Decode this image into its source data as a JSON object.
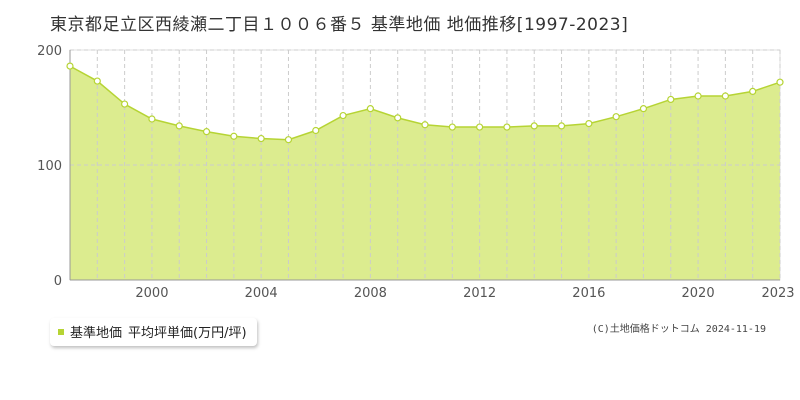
{
  "title": "東京都足立区西綾瀬二丁目１００６番５ 基準地価 地価推移[1997-2023]",
  "legend": {
    "series_label": "基準地価",
    "unit_label": "平均坪単価(万円/坪)"
  },
  "copyright": "(C)土地価格ドットコム 2024-11-19",
  "colors": {
    "fill": "#dcec8f",
    "line": "#b6d434",
    "marker_fill": "#ffffff",
    "grid": "#cccccc",
    "legend_swatch": "#b6d434"
  },
  "chart_data": {
    "type": "area",
    "title": "東京都足立区西綾瀬二丁目１００６番５ 基準地価 地価推移[1997-2023]",
    "xlabel": "",
    "ylabel": "",
    "x": [
      1997,
      1998,
      1999,
      2000,
      2001,
      2002,
      2003,
      2004,
      2005,
      2006,
      2007,
      2008,
      2009,
      2010,
      2011,
      2012,
      2013,
      2014,
      2015,
      2016,
      2017,
      2018,
      2019,
      2020,
      2021,
      2022,
      2023
    ],
    "series": [
      {
        "name": "基準地価",
        "values": [
          186,
          173,
          153,
          140,
          134,
          129,
          125,
          123,
          122,
          130,
          143,
          149,
          141,
          135,
          133,
          133,
          133,
          134,
          134,
          136,
          142,
          149,
          157,
          160,
          160,
          164,
          172
        ]
      }
    ],
    "xlim": [
      1997,
      2023
    ],
    "ylim": [
      0,
      200
    ],
    "x_ticks": [
      "2000",
      "2004",
      "2008",
      "2012",
      "2016",
      "2020",
      "2023"
    ],
    "y_ticks": [
      "0",
      "100",
      "200"
    ],
    "grid": true,
    "legend_position": "bottom-left"
  }
}
